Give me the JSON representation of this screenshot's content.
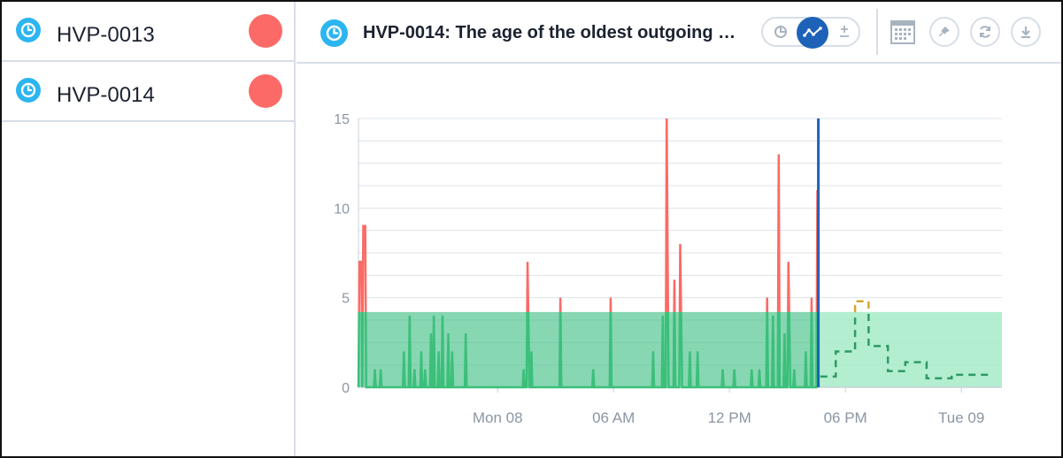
{
  "list": {
    "items": [
      {
        "label": "HVP-0013",
        "status_color": "#fb6a66",
        "icon": "clock-icon"
      },
      {
        "label": "HVP-0014",
        "status_color": "#fb6a66",
        "icon": "clock-icon"
      }
    ]
  },
  "header": {
    "title": "HVP-0014: The age of the oldest outgoing …",
    "icon": "clock-icon",
    "toolbar": {
      "icons": [
        "pie-chart-icon",
        "line-chart-icon",
        "plus-minus-icon",
        "calendar-icon",
        "pin-icon",
        "refresh-icon",
        "download-icon"
      ],
      "active_view": "line-chart-icon"
    }
  },
  "colors": {
    "accent": "#1e62b8",
    "alert": "#fb6a66",
    "ok": "#3cbf7a",
    "forecast_warning": "#d3a72a",
    "band_past": "#46c28a",
    "band_future": "#a6ebc8"
  },
  "chart_data": {
    "type": "line",
    "y_ticks": [
      "0",
      "5",
      "10",
      "15"
    ],
    "x_ticks": [
      "Mon 08",
      "06 AM",
      "12 PM",
      "06 PM",
      "Tue 09"
    ],
    "x_tick_hours": [
      24,
      30,
      36,
      42,
      48
    ],
    "x_range_hours": [
      16.8,
      50.1
    ],
    "ylim": [
      0,
      15
    ],
    "now_hour": 40.6,
    "threshold": 4.2,
    "series": [
      {
        "values": [
          [
            16.8,
            0
          ],
          [
            16.85,
            7
          ],
          [
            16.95,
            7
          ],
          [
            17.0,
            0
          ],
          [
            17.05,
            9
          ],
          [
            17.15,
            9
          ],
          [
            17.2,
            0
          ],
          [
            17.6,
            0
          ],
          [
            17.65,
            1
          ],
          [
            17.7,
            0
          ],
          [
            17.9,
            0
          ],
          [
            17.95,
            1
          ],
          [
            18.0,
            0
          ],
          [
            19.1,
            0
          ],
          [
            19.15,
            2
          ],
          [
            19.2,
            0
          ],
          [
            19.4,
            0
          ],
          [
            19.45,
            4
          ],
          [
            19.5,
            0
          ],
          [
            19.65,
            0
          ],
          [
            19.7,
            1
          ],
          [
            19.75,
            0
          ],
          [
            20.0,
            0
          ],
          [
            20.05,
            2
          ],
          [
            20.1,
            0
          ],
          [
            20.2,
            0
          ],
          [
            20.25,
            1
          ],
          [
            20.3,
            0
          ],
          [
            20.5,
            0
          ],
          [
            20.55,
            3
          ],
          [
            20.6,
            0
          ],
          [
            20.65,
            0
          ],
          [
            20.7,
            4
          ],
          [
            20.75,
            0
          ],
          [
            20.9,
            0
          ],
          [
            20.95,
            2
          ],
          [
            21.0,
            0
          ],
          [
            21.1,
            0
          ],
          [
            21.15,
            4
          ],
          [
            21.2,
            0
          ],
          [
            21.4,
            0
          ],
          [
            21.45,
            3
          ],
          [
            21.5,
            0
          ],
          [
            21.6,
            0
          ],
          [
            21.65,
            2
          ],
          [
            21.7,
            0
          ],
          [
            22.3,
            0
          ],
          [
            22.35,
            3
          ],
          [
            22.4,
            0
          ],
          [
            25.3,
            0
          ],
          [
            25.35,
            1
          ],
          [
            25.4,
            0
          ],
          [
            25.5,
            0
          ],
          [
            25.55,
            7
          ],
          [
            25.65,
            0
          ],
          [
            25.7,
            0
          ],
          [
            25.75,
            2
          ],
          [
            25.8,
            0
          ],
          [
            27.2,
            0
          ],
          [
            27.25,
            5
          ],
          [
            27.3,
            0
          ],
          [
            28.9,
            0
          ],
          [
            28.95,
            1
          ],
          [
            29.0,
            0
          ],
          [
            29.8,
            0
          ],
          [
            29.85,
            5
          ],
          [
            29.9,
            0
          ],
          [
            32.0,
            0
          ],
          [
            32.05,
            2
          ],
          [
            32.1,
            0
          ],
          [
            32.5,
            0
          ],
          [
            32.55,
            4
          ],
          [
            32.6,
            0
          ],
          [
            32.7,
            0
          ],
          [
            32.75,
            15
          ],
          [
            32.85,
            0
          ],
          [
            33.1,
            0
          ],
          [
            33.15,
            6
          ],
          [
            33.2,
            0
          ],
          [
            33.4,
            0
          ],
          [
            33.45,
            8
          ],
          [
            33.55,
            0
          ],
          [
            33.9,
            0
          ],
          [
            33.95,
            2
          ],
          [
            34.0,
            0
          ],
          [
            34.3,
            0
          ],
          [
            34.35,
            2
          ],
          [
            34.4,
            0
          ],
          [
            35.6,
            0
          ],
          [
            35.65,
            1
          ],
          [
            35.7,
            0
          ],
          [
            36.2,
            0
          ],
          [
            36.25,
            1
          ],
          [
            36.3,
            0
          ],
          [
            37.1,
            0
          ],
          [
            37.15,
            1
          ],
          [
            37.2,
            0
          ],
          [
            37.5,
            0
          ],
          [
            37.55,
            1
          ],
          [
            37.6,
            0
          ],
          [
            37.9,
            0
          ],
          [
            37.95,
            5
          ],
          [
            38.0,
            0
          ],
          [
            38.2,
            0
          ],
          [
            38.25,
            4
          ],
          [
            38.3,
            0
          ],
          [
            38.5,
            0
          ],
          [
            38.55,
            13
          ],
          [
            38.6,
            0
          ],
          [
            38.8,
            0
          ],
          [
            38.85,
            3
          ],
          [
            38.9,
            0
          ],
          [
            39.0,
            0
          ],
          [
            39.05,
            7
          ],
          [
            39.15,
            0
          ],
          [
            39.3,
            0
          ],
          [
            39.35,
            1
          ],
          [
            39.4,
            0
          ],
          [
            39.9,
            0
          ],
          [
            39.95,
            2
          ],
          [
            40.0,
            0
          ],
          [
            40.2,
            0
          ],
          [
            40.25,
            5
          ],
          [
            40.3,
            0
          ],
          [
            40.5,
            0
          ],
          [
            40.55,
            11
          ],
          [
            40.6,
            0
          ]
        ]
      },
      {
        "values": [
          [
            40.7,
            0.6
          ],
          [
            41.5,
            0.6
          ],
          [
            41.5,
            2
          ],
          [
            42.5,
            2
          ],
          [
            42.5,
            4.8
          ],
          [
            43.2,
            4.8
          ],
          [
            43.2,
            2.3
          ],
          [
            44.2,
            2.3
          ],
          [
            44.2,
            0.9
          ],
          [
            45.1,
            0.9
          ],
          [
            45.1,
            1.4
          ],
          [
            46.2,
            1.4
          ],
          [
            46.2,
            0.5
          ],
          [
            47.5,
            0.5
          ],
          [
            47.5,
            0.7
          ],
          [
            49.6,
            0.7
          ]
        ]
      }
    ],
    "grid": true
  }
}
